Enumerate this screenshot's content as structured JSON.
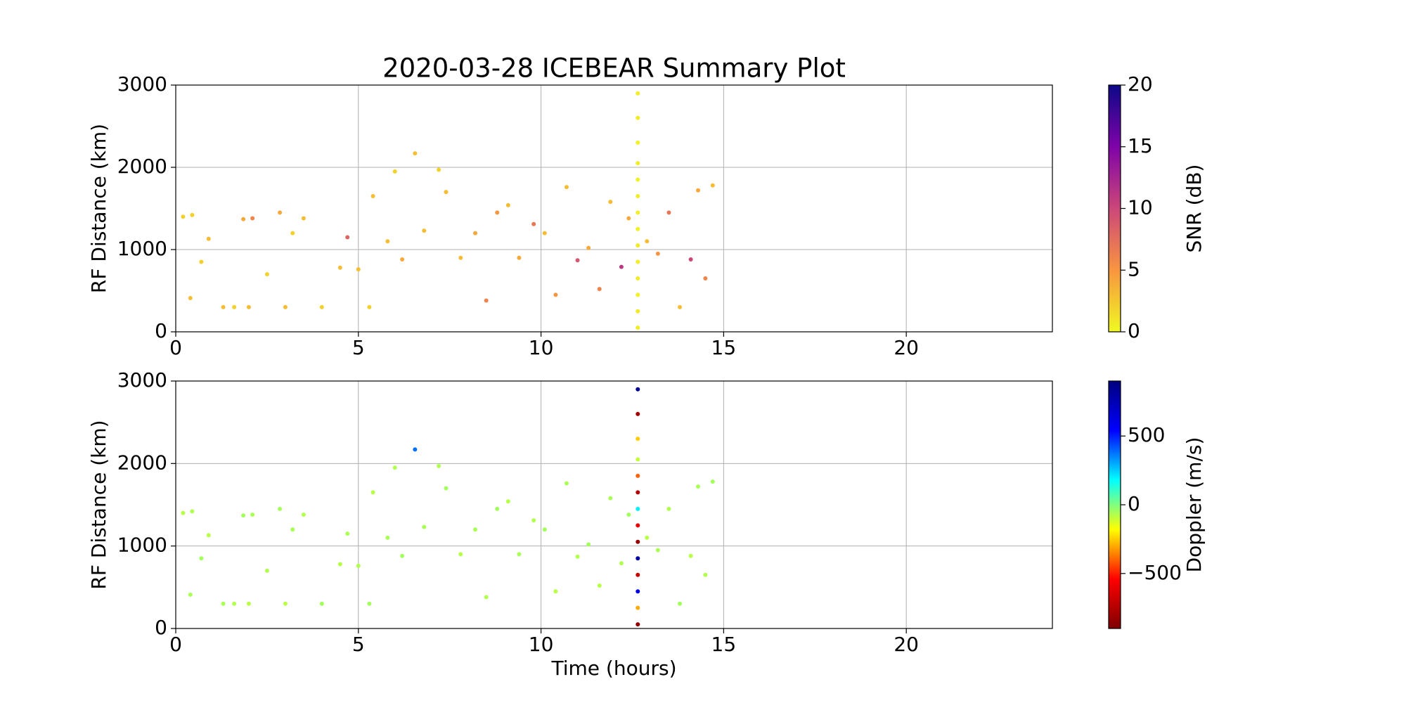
{
  "chart_data": [
    {
      "type": "scatter",
      "title": "2020-03-28 ICEBEAR Summary Plot",
      "ylabel": "RF Distance (km)",
      "x": [
        0.2,
        0.4,
        0.45,
        0.7,
        0.9,
        1.3,
        1.6,
        1.85,
        2.0,
        2.1,
        2.5,
        2.85,
        3.0,
        3.2,
        3.5,
        4.0,
        4.5,
        4.7,
        5.0,
        5.3,
        5.4,
        5.8,
        6.0,
        6.2,
        6.55,
        6.8,
        7.2,
        7.4,
        7.8,
        8.2,
        8.5,
        8.8,
        9.1,
        9.4,
        9.8,
        10.1,
        10.4,
        10.7,
        11.0,
        11.3,
        11.6,
        11.9,
        12.2,
        12.4,
        12.9,
        13.2,
        13.5,
        13.8,
        14.1,
        14.3,
        14.5,
        14.7,
        12.65,
        12.65,
        12.65,
        12.65,
        12.65,
        12.65,
        12.65,
        12.65,
        12.65,
        12.65,
        12.65,
        12.65,
        12.65,
        12.65
      ],
      "y": [
        1400,
        410,
        1420,
        850,
        1130,
        300,
        300,
        1370,
        300,
        1380,
        700,
        1450,
        300,
        1200,
        1380,
        300,
        780,
        1150,
        760,
        300,
        1650,
        1100,
        1950,
        880,
        2170,
        1230,
        1970,
        1700,
        900,
        1200,
        380,
        1450,
        1540,
        900,
        1310,
        1200,
        450,
        1760,
        870,
        1020,
        520,
        1580,
        790,
        1380,
        1100,
        950,
        1450,
        300,
        880,
        1720,
        650,
        1780,
        50,
        250,
        450,
        650,
        850,
        1050,
        1250,
        1450,
        1650,
        1850,
        2050,
        2300,
        2600,
        2900
      ],
      "c": [
        2,
        3,
        2,
        2,
        3,
        3,
        2,
        4,
        3,
        6,
        2,
        4,
        3,
        2,
        3,
        2,
        3,
        8,
        3,
        2,
        3,
        3,
        2,
        4,
        3,
        3,
        2,
        3,
        3,
        4,
        6,
        5,
        3,
        4,
        7,
        3,
        5,
        3,
        9,
        4,
        6,
        3,
        11,
        4,
        3,
        5,
        7,
        3,
        10,
        4,
        6,
        3,
        0.5,
        0.8,
        0.4,
        0.6,
        0.5,
        0.7,
        0.4,
        0.5,
        0.6,
        0.3,
        0.5,
        0.4,
        0.6,
        0.5
      ],
      "xlim": [
        0,
        24
      ],
      "xticks": [
        0,
        5,
        10,
        15,
        20
      ],
      "ylim": [
        0,
        3000
      ],
      "yticks": [
        0,
        1000,
        2000,
        3000
      ],
      "grid": true,
      "colorbar": {
        "label": "SNR (dB)",
        "lim": [
          0,
          20
        ],
        "ticks": [
          0,
          5,
          10,
          15,
          20
        ],
        "colormap": [
          "#f0f921",
          "#f89540",
          "#cc4778",
          "#7e03a8",
          "#0d0887"
        ]
      }
    },
    {
      "type": "scatter",
      "xlabel": "Time (hours)",
      "ylabel": "RF Distance (km)",
      "x": [
        0.2,
        0.4,
        0.45,
        0.7,
        0.9,
        1.3,
        1.6,
        1.85,
        2.0,
        2.1,
        2.5,
        2.85,
        3.0,
        3.2,
        3.5,
        4.0,
        4.5,
        4.7,
        5.0,
        5.3,
        5.4,
        5.8,
        6.0,
        6.2,
        6.55,
        6.8,
        7.2,
        7.4,
        7.8,
        8.2,
        8.5,
        8.8,
        9.1,
        9.4,
        9.8,
        10.1,
        10.4,
        10.7,
        11.0,
        11.3,
        11.6,
        11.9,
        12.2,
        12.4,
        12.9,
        13.2,
        13.5,
        13.8,
        14.1,
        14.3,
        14.5,
        14.7,
        12.65,
        12.65,
        12.65,
        12.65,
        12.65,
        12.65,
        12.65,
        12.65,
        12.65,
        12.65,
        12.65,
        12.65,
        12.65,
        12.65
      ],
      "y": [
        1400,
        410,
        1420,
        850,
        1130,
        300,
        300,
        1370,
        300,
        1380,
        700,
        1450,
        300,
        1200,
        1380,
        300,
        780,
        1150,
        760,
        300,
        1650,
        1100,
        1950,
        880,
        2170,
        1230,
        1970,
        1700,
        900,
        1200,
        380,
        1450,
        1540,
        900,
        1310,
        1200,
        450,
        1760,
        870,
        1020,
        520,
        1580,
        790,
        1380,
        1100,
        950,
        1450,
        300,
        880,
        1720,
        650,
        1780,
        50,
        250,
        450,
        650,
        850,
        1050,
        1250,
        1450,
        1650,
        1850,
        2050,
        2300,
        2600,
        2900
      ],
      "c": [
        -80,
        -60,
        -70,
        -50,
        -80,
        -60,
        -70,
        -50,
        -80,
        -60,
        -70,
        -50,
        -80,
        -60,
        -70,
        -50,
        -80,
        -60,
        -70,
        -50,
        -80,
        -60,
        -70,
        -50,
        380,
        -60,
        -70,
        -50,
        -80,
        -60,
        -70,
        -50,
        -80,
        -60,
        -70,
        -50,
        -80,
        -60,
        -70,
        -50,
        -80,
        -60,
        -70,
        -50,
        -80,
        -60,
        -70,
        -50,
        -80,
        -60,
        -70,
        -50,
        -850,
        -300,
        600,
        -700,
        800,
        -820,
        -600,
        200,
        -750,
        -400,
        -100,
        -250,
        -800,
        850
      ],
      "xlim": [
        0,
        24
      ],
      "xticks": [
        0,
        5,
        10,
        15,
        20
      ],
      "ylim": [
        0,
        3000
      ],
      "yticks": [
        0,
        1000,
        2000,
        3000
      ],
      "grid": true,
      "colorbar": {
        "label": "Doppler (m/s)",
        "lim": [
          -900,
          900
        ],
        "ticks": [
          {
            "value": -500,
            "label": "−500"
          },
          0,
          500
        ],
        "colormap": [
          "#7f0000",
          "#ff0000",
          "#ffff00",
          "#00ffff",
          "#0000ff",
          "#00007f"
        ]
      }
    }
  ]
}
